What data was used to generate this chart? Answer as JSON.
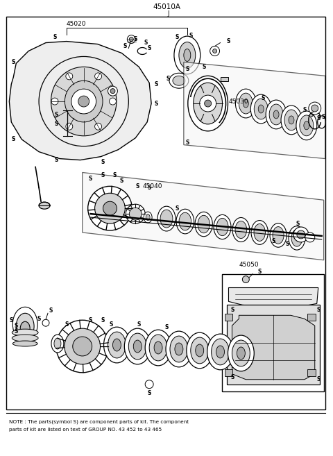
{
  "bg_color": "#ffffff",
  "line_color": "#000000",
  "text_color": "#000000",
  "title": "45010A",
  "subtitle": "J",
  "note_line1": "NOTE : The parts(symbol S) are component parts of kit. The component",
  "note_line2": "parts of kit are listed on text of GROUP NO. 43 452 to 43 465",
  "fig_width": 4.8,
  "fig_height": 6.57,
  "dpi": 100
}
